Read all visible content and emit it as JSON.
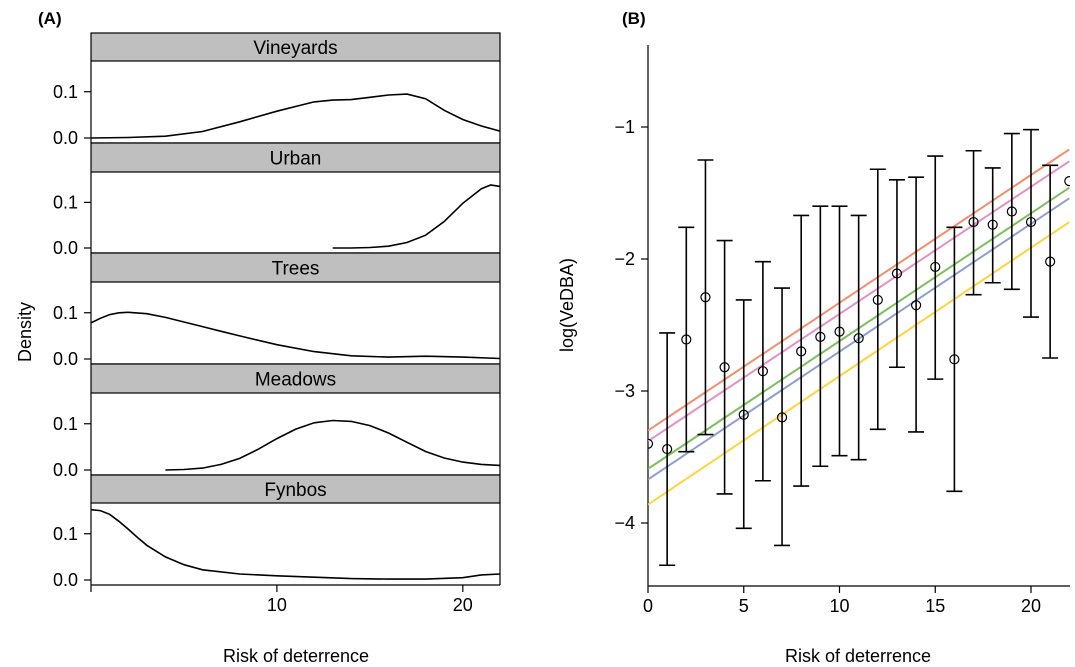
{
  "panel_a": {
    "label": "(A)",
    "ylabel": "Density",
    "xlabel": "Risk of deterrence",
    "xticks": [
      "10",
      "20"
    ],
    "yticks": [
      "0.0",
      "0.1"
    ]
  },
  "panel_b": {
    "label": "(B)",
    "ylabel": "log(VeDBA)",
    "xlabel": "Risk of deterrence",
    "xticks": [
      "0",
      "5",
      "10",
      "15",
      "20"
    ],
    "yticks": [
      "−4",
      "−3",
      "−2",
      "−1"
    ]
  },
  "chart_data": [
    {
      "type": "line",
      "subtype": "density-facets",
      "xlabel": "Risk of deterrence",
      "ylabel": "Density",
      "xlim": [
        0,
        22
      ],
      "ylim": [
        0,
        0.16
      ],
      "series": [
        {
          "name": "Vineyards",
          "x": [
            0,
            2,
            4,
            6,
            8,
            10,
            11,
            12,
            13,
            14,
            15,
            16,
            17,
            18,
            19,
            20,
            21,
            22
          ],
          "y": [
            0.0,
            0.001,
            0.004,
            0.014,
            0.035,
            0.058,
            0.068,
            0.078,
            0.082,
            0.083,
            0.088,
            0.093,
            0.095,
            0.085,
            0.06,
            0.04,
            0.026,
            0.015
          ]
        },
        {
          "name": "Urban",
          "x": [
            13,
            14,
            15,
            16,
            17,
            18,
            19,
            20,
            21,
            21.5,
            22
          ],
          "y": [
            0.0,
            0.0,
            0.001,
            0.004,
            0.012,
            0.028,
            0.058,
            0.098,
            0.13,
            0.138,
            0.135
          ]
        },
        {
          "name": "Trees",
          "x": [
            0,
            0.5,
            1,
            1.5,
            2,
            3,
            4,
            5,
            6,
            7,
            8,
            10,
            12,
            14,
            16,
            18,
            20,
            22
          ],
          "y": [
            0.078,
            0.088,
            0.096,
            0.1,
            0.101,
            0.098,
            0.09,
            0.08,
            0.07,
            0.06,
            0.05,
            0.031,
            0.016,
            0.007,
            0.004,
            0.006,
            0.004,
            0.001
          ]
        },
        {
          "name": "Meadows",
          "x": [
            4,
            5,
            6,
            7,
            8,
            9,
            10,
            11,
            12,
            13,
            14,
            15,
            16,
            17,
            18,
            19,
            20,
            21,
            22
          ],
          "y": [
            0.0,
            0.001,
            0.004,
            0.012,
            0.025,
            0.045,
            0.068,
            0.088,
            0.102,
            0.107,
            0.105,
            0.096,
            0.08,
            0.06,
            0.04,
            0.026,
            0.017,
            0.012,
            0.01
          ]
        },
        {
          "name": "Fynbos",
          "x": [
            0,
            0.5,
            1,
            1.5,
            2,
            2.5,
            3,
            4,
            5,
            6,
            8,
            10,
            12,
            14,
            16,
            18,
            20,
            21,
            22
          ],
          "y": [
            0.152,
            0.15,
            0.142,
            0.127,
            0.11,
            0.092,
            0.075,
            0.05,
            0.033,
            0.022,
            0.013,
            0.009,
            0.006,
            0.003,
            0.002,
            0.002,
            0.005,
            0.011,
            0.013
          ]
        }
      ]
    },
    {
      "type": "scatter",
      "subtype": "points-with-errorbars-and-fit-lines",
      "xlabel": "Risk of deterrence",
      "ylabel": "log(VeDBA)",
      "xlim": [
        0,
        22
      ],
      "ylim": [
        -4.5,
        -0.4
      ],
      "points": [
        {
          "x": 0,
          "y": -3.4,
          "lo": null,
          "hi": null
        },
        {
          "x": 1,
          "y": -3.44,
          "lo": -4.32,
          "hi": -2.56
        },
        {
          "x": 2,
          "y": -2.61,
          "lo": -3.46,
          "hi": -1.76
        },
        {
          "x": 3,
          "y": -2.29,
          "lo": -3.33,
          "hi": -1.25
        },
        {
          "x": 4,
          "y": -2.82,
          "lo": -3.78,
          "hi": -1.86
        },
        {
          "x": 5,
          "y": -3.18,
          "lo": -4.04,
          "hi": -2.31
        },
        {
          "x": 6,
          "y": -2.85,
          "lo": -3.68,
          "hi": -2.02
        },
        {
          "x": 7,
          "y": -3.2,
          "lo": -4.17,
          "hi": -2.22
        },
        {
          "x": 8,
          "y": -2.7,
          "lo": -3.72,
          "hi": -1.67
        },
        {
          "x": 9,
          "y": -2.59,
          "lo": -3.57,
          "hi": -1.6
        },
        {
          "x": 10,
          "y": -2.55,
          "lo": -3.49,
          "hi": -1.6
        },
        {
          "x": 11,
          "y": -2.6,
          "lo": -3.52,
          "hi": -1.67
        },
        {
          "x": 12,
          "y": -2.31,
          "lo": -3.29,
          "hi": -1.32
        },
        {
          "x": 13,
          "y": -2.11,
          "lo": -2.82,
          "hi": -1.4
        },
        {
          "x": 14,
          "y": -2.35,
          "lo": -3.31,
          "hi": -1.38
        },
        {
          "x": 15,
          "y": -2.06,
          "lo": -2.91,
          "hi": -1.22
        },
        {
          "x": 16,
          "y": -2.76,
          "lo": -3.76,
          "hi": -1.76
        },
        {
          "x": 17,
          "y": -1.72,
          "lo": -2.27,
          "hi": -1.18
        },
        {
          "x": 18,
          "y": -1.74,
          "lo": -2.18,
          "hi": -1.31
        },
        {
          "x": 19,
          "y": -1.64,
          "lo": -2.23,
          "hi": -1.05
        },
        {
          "x": 20,
          "y": -1.72,
          "lo": -2.44,
          "hi": -1.02
        },
        {
          "x": 21,
          "y": -2.02,
          "lo": -2.75,
          "hi": -1.29
        },
        {
          "x": 22,
          "y": -1.41,
          "lo": null,
          "hi": null
        }
      ],
      "lines": [
        {
          "color": "#F28E6B",
          "y0": -3.3,
          "y1": -1.17
        },
        {
          "color": "#E68FC2",
          "y0": -3.38,
          "y1": -1.26
        },
        {
          "color": "#7CC05E",
          "y0": -3.59,
          "y1": -1.46
        },
        {
          "color": "#8DA0CB",
          "y0": -3.67,
          "y1": -1.54
        },
        {
          "color": "#FFD43B",
          "y0": -3.86,
          "y1": -1.72
        }
      ]
    }
  ]
}
